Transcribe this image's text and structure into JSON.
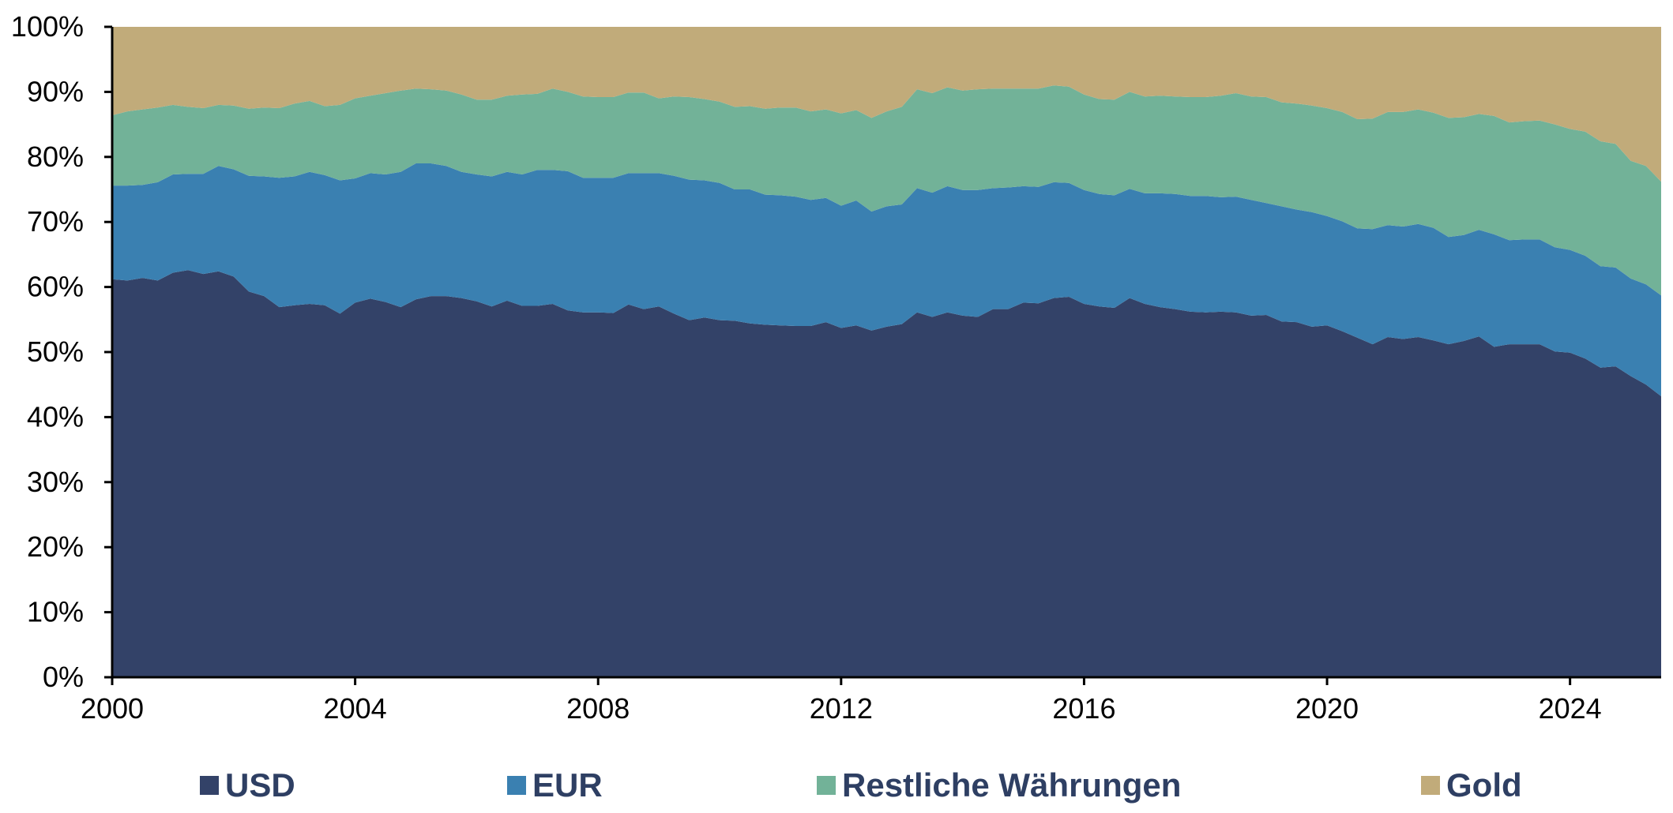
{
  "chart_data": {
    "type": "area",
    "stacked": true,
    "x": [
      2000.0,
      2000.25,
      2000.5,
      2000.75,
      2001.0,
      2001.25,
      2001.5,
      2001.75,
      2002.0,
      2002.25,
      2002.5,
      2002.75,
      2003.0,
      2003.25,
      2003.5,
      2003.75,
      2004.0,
      2004.25,
      2004.5,
      2004.75,
      2005.0,
      2005.25,
      2005.5,
      2005.75,
      2006.0,
      2006.25,
      2006.5,
      2006.75,
      2007.0,
      2007.25,
      2007.5,
      2007.75,
      2008.0,
      2008.25,
      2008.5,
      2008.75,
      2009.0,
      2009.25,
      2009.5,
      2009.75,
      2010.0,
      2010.25,
      2010.5,
      2010.75,
      2011.0,
      2011.25,
      2011.5,
      2011.75,
      2012.0,
      2012.25,
      2012.5,
      2012.75,
      2013.0,
      2013.25,
      2013.5,
      2013.75,
      2014.0,
      2014.25,
      2014.5,
      2014.75,
      2015.0,
      2015.25,
      2015.5,
      2015.75,
      2016.0,
      2016.25,
      2016.5,
      2016.75,
      2017.0,
      2017.25,
      2017.5,
      2017.75,
      2018.0,
      2018.25,
      2018.5,
      2018.75,
      2019.0,
      2019.25,
      2019.5,
      2019.75,
      2020.0,
      2020.25,
      2020.5,
      2020.75,
      2021.0,
      2021.25,
      2021.5,
      2021.75,
      2022.0,
      2022.25,
      2022.5,
      2022.75,
      2023.0,
      2023.25,
      2023.5,
      2023.75,
      2024.0,
      2024.25,
      2024.5,
      2024.75,
      2025.0,
      2025.25,
      2025.5
    ],
    "series": [
      {
        "name": "USD",
        "color": "#334268",
        "values": [
          61.2,
          61.0,
          61.4,
          61.0,
          62.2,
          62.6,
          62.0,
          62.4,
          61.6,
          59.3,
          58.6,
          56.9,
          57.2,
          57.4,
          57.2,
          55.9,
          57.6,
          58.2,
          57.7,
          56.9,
          58.1,
          58.6,
          58.6,
          58.3,
          57.8,
          57.0,
          57.9,
          57.1,
          57.1,
          57.4,
          56.4,
          56.1,
          56.1,
          56.0,
          57.3,
          56.6,
          57.0,
          55.9,
          54.9,
          55.3,
          54.9,
          54.8,
          54.4,
          54.2,
          54.1,
          54.0,
          54.0,
          54.6,
          53.7,
          54.1,
          53.3,
          53.9,
          54.3,
          56.1,
          55.4,
          56.1,
          55.6,
          55.4,
          56.6,
          56.6,
          57.6,
          57.5,
          58.3,
          58.5,
          57.4,
          57.0,
          56.8,
          58.3,
          57.4,
          56.9,
          56.6,
          56.2,
          56.1,
          56.2,
          56.1,
          55.6,
          55.7,
          54.7,
          54.6,
          53.9,
          54.1,
          53.2,
          52.2,
          51.2,
          52.3,
          52.0,
          52.3,
          51.8,
          51.2,
          51.7,
          52.4,
          50.8,
          51.2,
          51.2,
          51.2,
          50.1,
          49.9,
          49.0,
          47.6,
          47.8,
          46.3,
          45.0,
          43.2
        ]
      },
      {
        "name": "EUR",
        "color": "#3a80b1",
        "values": [
          14.4,
          14.6,
          14.3,
          15.1,
          15.1,
          14.8,
          15.4,
          16.2,
          16.5,
          17.8,
          18.4,
          19.9,
          19.8,
          20.3,
          20.0,
          20.5,
          19.1,
          19.3,
          19.6,
          20.8,
          20.9,
          20.4,
          20.0,
          19.4,
          19.5,
          20.0,
          19.8,
          20.2,
          20.9,
          20.6,
          21.4,
          20.7,
          20.7,
          20.8,
          20.2,
          20.9,
          20.5,
          21.2,
          21.6,
          21.1,
          21.1,
          20.2,
          20.6,
          20.0,
          20.0,
          19.9,
          19.4,
          19.1,
          18.8,
          19.2,
          18.3,
          18.5,
          18.4,
          19.1,
          19.1,
          19.4,
          19.3,
          19.5,
          18.6,
          18.7,
          17.9,
          17.9,
          17.8,
          17.5,
          17.5,
          17.3,
          17.3,
          16.8,
          17.0,
          17.5,
          17.7,
          17.8,
          17.9,
          17.6,
          17.8,
          17.8,
          17.2,
          17.7,
          17.3,
          17.6,
          16.8,
          16.9,
          16.8,
          17.7,
          17.2,
          17.3,
          17.4,
          17.3,
          16.5,
          16.3,
          16.4,
          17.3,
          16.0,
          16.1,
          16.1,
          16.0,
          15.8,
          15.8,
          15.6,
          15.2,
          15.0,
          15.4,
          15.5
        ]
      },
      {
        "name": "Restliche Währungen",
        "color": "#72b298",
        "values": [
          10.8,
          11.4,
          11.6,
          11.5,
          10.7,
          10.3,
          10.1,
          9.4,
          9.8,
          10.3,
          10.6,
          10.7,
          11.2,
          10.9,
          10.6,
          11.6,
          12.3,
          11.9,
          12.5,
          12.5,
          11.5,
          11.4,
          11.6,
          11.9,
          11.5,
          11.8,
          11.7,
          12.3,
          11.7,
          12.5,
          12.2,
          12.5,
          12.4,
          12.4,
          12.4,
          12.4,
          11.5,
          12.2,
          12.7,
          12.5,
          12.5,
          12.7,
          12.8,
          13.2,
          13.5,
          13.7,
          13.6,
          13.6,
          14.2,
          13.9,
          14.4,
          14.6,
          15.0,
          15.2,
          15.3,
          15.2,
          15.3,
          15.5,
          15.3,
          15.2,
          15.0,
          15.1,
          14.9,
          14.8,
          14.7,
          14.6,
          14.7,
          14.9,
          14.9,
          15.0,
          15.0,
          15.2,
          15.2,
          15.6,
          15.9,
          15.9,
          16.3,
          16.0,
          16.3,
          16.4,
          16.6,
          16.8,
          16.8,
          17.0,
          17.4,
          17.6,
          17.6,
          17.7,
          18.3,
          18.1,
          17.8,
          18.2,
          18.1,
          18.2,
          18.3,
          18.9,
          18.6,
          19.1,
          19.2,
          19.0,
          18.1,
          18.2,
          17.5
        ]
      },
      {
        "name": "Gold",
        "color": "#c1ab7a",
        "values": [
          13.6,
          13.0,
          12.7,
          12.4,
          12.0,
          12.3,
          12.5,
          12.0,
          12.1,
          12.6,
          12.4,
          12.5,
          11.8,
          11.4,
          12.2,
          12.0,
          11.0,
          10.6,
          10.2,
          9.8,
          9.5,
          9.6,
          9.8,
          10.4,
          11.2,
          11.2,
          10.6,
          10.4,
          10.3,
          9.5,
          10.0,
          10.7,
          10.8,
          10.8,
          10.1,
          10.1,
          11.0,
          10.7,
          10.8,
          11.1,
          11.5,
          12.3,
          12.2,
          12.6,
          12.4,
          12.4,
          13.0,
          12.7,
          13.3,
          12.8,
          14.0,
          13.0,
          12.3,
          9.6,
          10.2,
          9.3,
          9.8,
          9.6,
          9.5,
          9.5,
          9.5,
          9.5,
          9.0,
          9.2,
          10.4,
          11.1,
          11.2,
          10.0,
          10.7,
          10.6,
          10.7,
          10.8,
          10.8,
          10.6,
          10.2,
          10.7,
          10.8,
          11.6,
          11.8,
          12.1,
          12.5,
          13.1,
          14.2,
          14.1,
          13.1,
          13.1,
          12.7,
          13.2,
          14.0,
          13.9,
          13.4,
          13.7,
          14.7,
          14.5,
          14.4,
          15.0,
          15.7,
          16.1,
          17.6,
          18.0,
          20.6,
          21.4,
          23.8
        ]
      }
    ],
    "xlim": [
      2000,
      2025.5
    ],
    "ylim": [
      0,
      100
    ],
    "x_ticks": [
      2000,
      2004,
      2008,
      2012,
      2016,
      2020,
      2024
    ],
    "x_tick_labels": [
      "2000",
      "2004",
      "2008",
      "2012",
      "2016",
      "2020",
      "2024"
    ],
    "y_ticks": [
      0,
      10,
      20,
      30,
      40,
      50,
      60,
      70,
      80,
      90,
      100
    ],
    "y_tick_labels": [
      "0%",
      "10%",
      "20%",
      "30%",
      "40%",
      "50%",
      "60%",
      "70%",
      "80%",
      "90%",
      "100%"
    ],
    "title": "",
    "xlabel": "",
    "ylabel": "",
    "grid": false,
    "legend_position": "bottom"
  }
}
